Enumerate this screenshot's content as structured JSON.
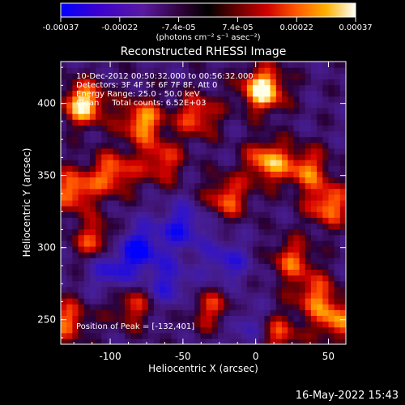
{
  "chart_data": {
    "type": "heatmap",
    "title": "Reconstructed RHESSI Image",
    "xlabel": "Heliocentric X (arcsec)",
    "ylabel": "Heliocentric Y (arcsec)",
    "xlim": [
      -134,
      62
    ],
    "ylim": [
      233,
      429
    ],
    "x_ticks": [
      -100,
      -50,
      0,
      50
    ],
    "y_ticks": [
      250,
      300,
      350,
      400
    ],
    "colorbar": {
      "ticks": [
        "-0.00037",
        "-0.00022",
        "-7.4e-05",
        "7.4e-05",
        "0.00022",
        "0.00037"
      ],
      "range": [
        -0.00037,
        0.00037
      ],
      "unit_label": "(photons cm⁻² s⁻¹ asec⁻²)"
    },
    "annotations": [
      "10-Dec-2012 00:50:32.000 to 00:56:32.000",
      "Detectors: 3F 4F 5F 6F 7F 8F, Att 0",
      "Energy Range: 25.0 - 50.0 keV",
      "Clean     Total counts: 6.52E+03"
    ],
    "peak_label": "Position of Peak = [-132,401]",
    "bright_spots": [
      {
        "x": 5,
        "y": 410,
        "intensity": 1.0
      },
      {
        "x": -118,
        "y": 400,
        "intensity": 0.9
      },
      {
        "x": -78,
        "y": 388,
        "intensity": 0.75
      },
      {
        "x": -40,
        "y": 392,
        "intensity": 0.6
      },
      {
        "x": -125,
        "y": 340,
        "intensity": 0.7
      },
      {
        "x": -98,
        "y": 352,
        "intensity": 0.65
      },
      {
        "x": -65,
        "y": 360,
        "intensity": 0.55
      },
      {
        "x": 8,
        "y": 360,
        "intensity": 0.75
      },
      {
        "x": 35,
        "y": 355,
        "intensity": 0.6
      },
      {
        "x": 50,
        "y": 330,
        "intensity": 0.7
      },
      {
        "x": -20,
        "y": 335,
        "intensity": 0.6
      },
      {
        "x": -110,
        "y": 305,
        "intensity": 0.6
      },
      {
        "x": 25,
        "y": 292,
        "intensity": 0.55
      },
      {
        "x": -85,
        "y": 260,
        "intensity": 0.5
      },
      {
        "x": 40,
        "y": 268,
        "intensity": 0.55
      },
      {
        "x": -30,
        "y": 258,
        "intensity": 0.5
      },
      {
        "x": -130,
        "y": 250,
        "intensity": 0.6
      },
      {
        "x": 55,
        "y": 250,
        "intensity": 0.65
      },
      {
        "x": 15,
        "y": 240,
        "intensity": 0.55
      }
    ],
    "dark_spots": [
      {
        "x": -80,
        "y": 300,
        "intensity": 0.7
      },
      {
        "x": -50,
        "y": 315,
        "intensity": 0.6
      },
      {
        "x": -20,
        "y": 290,
        "intensity": 0.5
      },
      {
        "x": -100,
        "y": 285,
        "intensity": 0.55
      },
      {
        "x": -60,
        "y": 275,
        "intensity": 0.5
      },
      {
        "x": -5,
        "y": 245,
        "intensity": 0.4
      }
    ]
  },
  "footer_timestamp": "16-May-2022 15:43"
}
